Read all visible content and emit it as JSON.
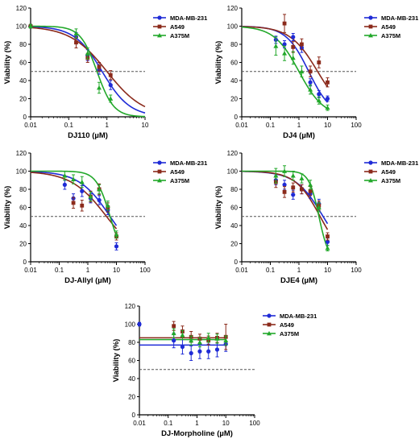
{
  "chart_data": [
    {
      "type": "scatter",
      "xlabel": "DJ110 (µM)",
      "ylabel": "Viability (%)",
      "xscale": "log",
      "xlim": [
        0.01,
        10
      ],
      "ylim": [
        0,
        120
      ],
      "xticks": [
        "0.01",
        "0.1",
        "1",
        "10"
      ],
      "yticks": [
        "0",
        "20",
        "40",
        "60",
        "80",
        "100",
        "120"
      ],
      "reference_line_y": 50,
      "legend_position": "right",
      "series": [
        {
          "name": "MDA-MB-231",
          "color": "#1f2bd6",
          "marker": "circle",
          "x": [
            0.01,
            0.156,
            0.3125,
            0.625,
            1.25
          ],
          "y": [
            100,
            88,
            68,
            52,
            35
          ],
          "err": [
            2,
            5,
            6,
            5,
            5
          ],
          "fit": {
            "ic50": 0.75,
            "hill": 1.2,
            "top": 100
          }
        },
        {
          "name": "A549",
          "color": "#8b2a1b",
          "marker": "square",
          "x": [
            0.01,
            0.156,
            0.3125,
            0.625,
            1.25
          ],
          "y": [
            100,
            82,
            65,
            55,
            46
          ],
          "err": [
            2,
            6,
            5,
            5,
            5
          ],
          "fit": {
            "ic50": 1.0,
            "hill": 0.9,
            "top": 100
          }
        },
        {
          "name": "A375M",
          "color": "#22a82a",
          "marker": "triangle",
          "x": [
            0.01,
            0.156,
            0.3125,
            0.625,
            1.25
          ],
          "y": [
            100,
            92,
            70,
            32,
            20
          ],
          "err": [
            2,
            5,
            6,
            6,
            4
          ],
          "fit": {
            "ic50": 0.55,
            "hill": 2.0,
            "top": 100
          }
        }
      ]
    },
    {
      "type": "scatter",
      "xlabel": "DJ4 (µM)",
      "ylabel": "Viability (%)",
      "xscale": "log",
      "xlim": [
        0.01,
        100
      ],
      "ylim": [
        0,
        120
      ],
      "xticks": [
        "0.01",
        "0.1",
        "1",
        "10",
        "100"
      ],
      "yticks": [
        "0",
        "20",
        "40",
        "60",
        "80",
        "100",
        "120"
      ],
      "reference_line_y": 50,
      "legend_position": "right",
      "series": [
        {
          "name": "MDA-MB-231",
          "color": "#1f2bd6",
          "marker": "circle",
          "x": [
            0.156,
            0.3125,
            0.625,
            1.25,
            2.5,
            5,
            10
          ],
          "y": [
            85,
            80,
            88,
            76,
            38,
            25,
            20
          ],
          "err": [
            4,
            4,
            4,
            5,
            4,
            4,
            3
          ],
          "fit": {
            "ic50": 2.2,
            "hill": 1.1,
            "top": 100
          }
        },
        {
          "name": "A549",
          "color": "#8b2a1b",
          "marker": "square",
          "x": [
            0.3125,
            0.625,
            1.25,
            2.5,
            5,
            10
          ],
          "y": [
            103,
            77,
            80,
            50,
            60,
            38
          ],
          "err": [
            10,
            6,
            6,
            6,
            6,
            5
          ],
          "fit": {
            "ic50": 4.5,
            "hill": 0.9,
            "top": 100
          }
        },
        {
          "name": "A375M",
          "color": "#22a82a",
          "marker": "triangle",
          "x": [
            0.156,
            0.3125,
            0.625,
            1.25,
            2.5,
            5,
            10
          ],
          "y": [
            78,
            70,
            65,
            50,
            30,
            18,
            10
          ],
          "err": [
            10,
            8,
            7,
            6,
            5,
            4,
            3
          ],
          "fit": {
            "ic50": 1.0,
            "hill": 1.0,
            "top": 100
          }
        }
      ]
    },
    {
      "type": "scatter",
      "xlabel": "DJ-Allyl (µM)",
      "ylabel": "Viability (%)",
      "xscale": "log",
      "xlim": [
        0.01,
        100
      ],
      "ylim": [
        0,
        120
      ],
      "xticks": [
        "0.01",
        "0.1",
        "1",
        "10",
        "100"
      ],
      "yticks": [
        "0",
        "20",
        "40",
        "60",
        "80",
        "100",
        "120"
      ],
      "reference_line_y": 50,
      "legend_position": "right",
      "series": [
        {
          "name": "MDA-MB-231",
          "color": "#1f2bd6",
          "marker": "circle",
          "x": [
            0.156,
            0.3125,
            0.625,
            1.25,
            2.5,
            5,
            10
          ],
          "y": [
            85,
            70,
            78,
            70,
            68,
            57,
            17
          ],
          "err": [
            5,
            5,
            6,
            5,
            5,
            5,
            4
          ],
          "fit": {
            "ic50": 6.0,
            "hill": 0.8,
            "top": 100
          }
        },
        {
          "name": "A549",
          "color": "#8b2a1b",
          "marker": "square",
          "x": [
            0.3125,
            0.625,
            1.25,
            2.5,
            5,
            10
          ],
          "y": [
            65,
            62,
            72,
            80,
            60,
            28
          ],
          "err": [
            6,
            6,
            6,
            6,
            5,
            4
          ],
          "fit": {
            "ic50": 4.5,
            "hill": 0.7,
            "top": 100
          }
        },
        {
          "name": "A375M",
          "color": "#22a82a",
          "marker": "triangle",
          "x": [
            0.156,
            0.3125,
            0.625,
            1.25,
            2.5,
            5,
            10
          ],
          "y": [
            95,
            91,
            88,
            72,
            80,
            62,
            30
          ],
          "err": [
            5,
            5,
            6,
            5,
            5,
            5,
            4
          ],
          "fit": {
            "ic50": 6.0,
            "hill": 1.8,
            "top": 100
          }
        }
      ]
    },
    {
      "type": "scatter",
      "xlabel": "DJE4 (µM)",
      "ylabel": "Viability (%)",
      "xscale": "log",
      "xlim": [
        0.01,
        100
      ],
      "ylim": [
        0,
        120
      ],
      "xticks": [
        "0.01",
        "0.1",
        "1",
        "10",
        "100"
      ],
      "yticks": [
        "0",
        "20",
        "40",
        "60",
        "80",
        "100",
        "120"
      ],
      "reference_line_y": 50,
      "legend_position": "right",
      "series": [
        {
          "name": "MDA-MB-231",
          "color": "#1f2bd6",
          "marker": "circle",
          "x": [
            0.156,
            0.3125,
            0.625,
            1.25,
            2.5,
            5,
            10
          ],
          "y": [
            90,
            85,
            74,
            80,
            75,
            64,
            22
          ],
          "err": [
            5,
            5,
            5,
            5,
            5,
            5,
            4
          ],
          "fit": {
            "ic50": 7.0,
            "hill": 0.9,
            "top": 100
          }
        },
        {
          "name": "A549",
          "color": "#8b2a1b",
          "marker": "square",
          "x": [
            0.156,
            0.3125,
            0.625,
            1.25,
            2.5,
            5,
            10
          ],
          "y": [
            88,
            77,
            82,
            80,
            78,
            62,
            28
          ],
          "err": [
            6,
            6,
            5,
            5,
            5,
            5,
            4
          ],
          "fit": {
            "ic50": 5.5,
            "hill": 1.0,
            "top": 100
          }
        },
        {
          "name": "A375M",
          "color": "#22a82a",
          "marker": "triangle",
          "x": [
            0.156,
            0.3125,
            0.625,
            1.25,
            2.5,
            5,
            10
          ],
          "y": [
            95,
            100,
            95,
            92,
            85,
            60,
            15
          ],
          "err": [
            8,
            6,
            5,
            5,
            5,
            5,
            3
          ],
          "fit": {
            "ic50": 5.0,
            "hill": 2.5,
            "top": 100
          }
        }
      ]
    },
    {
      "type": "scatter",
      "xlabel": "DJ-Morpholine (µM)",
      "ylabel": "Viability (%)",
      "xscale": "log",
      "xlim": [
        0.01,
        100
      ],
      "ylim": [
        0,
        120
      ],
      "xticks": [
        "0.01",
        "0.1",
        "1",
        "10",
        "100"
      ],
      "yticks": [
        "0",
        "20",
        "40",
        "60",
        "80",
        "100",
        "120"
      ],
      "reference_line_y": 50,
      "legend_position": "right",
      "series": [
        {
          "name": "MDA-MB-231",
          "color": "#1f2bd6",
          "marker": "circle",
          "x": [
            0.01,
            0.156,
            0.3125,
            0.625,
            1.25,
            2.5,
            5,
            10
          ],
          "y": [
            100,
            82,
            75,
            68,
            70,
            70,
            72,
            78
          ],
          "err": [
            2,
            8,
            8,
            8,
            8,
            8,
            8,
            8
          ],
          "fit": {
            "flat": 77
          }
        },
        {
          "name": "A549",
          "color": "#8b2a1b",
          "marker": "square",
          "x": [
            0.156,
            0.3125,
            0.625,
            1.25,
            2.5,
            5,
            10
          ],
          "y": [
            98,
            92,
            86,
            84,
            82,
            85,
            86
          ],
          "err": [
            5,
            6,
            6,
            5,
            5,
            5,
            14
          ],
          "fit": {
            "flat": 85
          }
        },
        {
          "name": "A375M",
          "color": "#22a82a",
          "marker": "triangle",
          "x": [
            0.156,
            0.3125,
            0.625,
            1.25,
            2.5,
            5,
            10
          ],
          "y": [
            90,
            88,
            82,
            80,
            85,
            84,
            82
          ],
          "err": [
            5,
            5,
            5,
            5,
            5,
            5,
            5
          ],
          "fit": {
            "flat": 83
          }
        }
      ]
    }
  ]
}
